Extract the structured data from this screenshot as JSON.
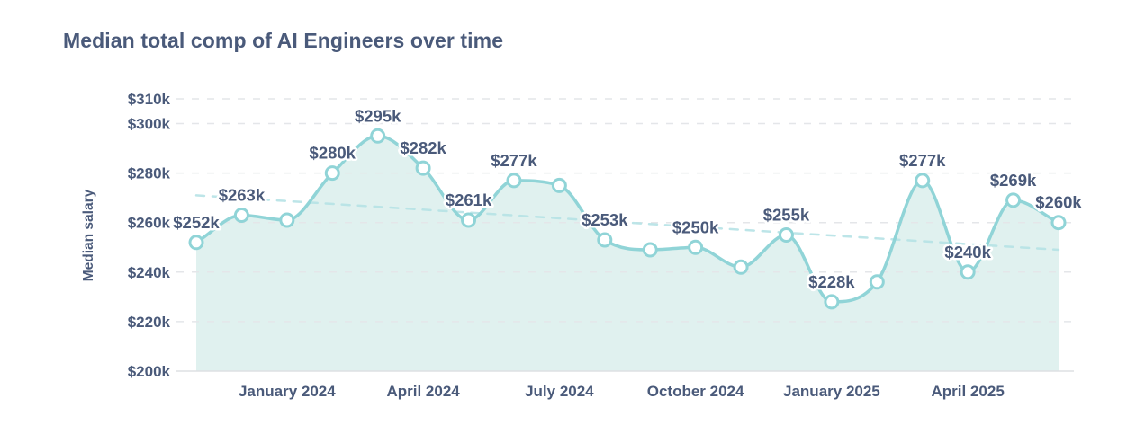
{
  "chart_data": {
    "type": "area",
    "title": "Median total comp of AI Engineers over time",
    "ylabel": "Median salary",
    "ylim": [
      200,
      310
    ],
    "grid": "dashed horizontal, gray",
    "legend": "none",
    "unit": "USD thousands",
    "values": [
      252,
      263,
      261,
      280,
      295,
      282,
      261,
      277,
      275,
      253,
      249,
      250,
      242,
      255,
      228,
      236,
      277,
      240,
      269,
      260
    ],
    "point_labels": [
      "$252k",
      "$263k",
      null,
      "$280k",
      "$295k",
      "$282k",
      "$261k",
      "$277k",
      null,
      "$253k",
      null,
      "$250k",
      null,
      "$255k",
      "$228k",
      null,
      "$277k",
      "$240k",
      "$269k",
      "$260k"
    ],
    "x_ticks": [
      {
        "index": 2,
        "label": "January 2024"
      },
      {
        "index": 5,
        "label": "April 2024"
      },
      {
        "index": 8,
        "label": "July 2024"
      },
      {
        "index": 11,
        "label": "October 2024"
      },
      {
        "index": 14,
        "label": "January 2025"
      },
      {
        "index": 17,
        "label": "April 2025"
      }
    ],
    "y_ticks": [
      {
        "value": 310,
        "label": "$310k"
      },
      {
        "value": 300,
        "label": "$300k"
      },
      {
        "value": 280,
        "label": "$280k"
      },
      {
        "value": 260,
        "label": "$260k"
      },
      {
        "value": 240,
        "label": "$240k"
      },
      {
        "value": 220,
        "label": "$220k"
      },
      {
        "value": 200,
        "label": "$200k"
      }
    ],
    "trend_line": {
      "style": "dashed",
      "start_value": 271,
      "end_value": 249
    },
    "colors": {
      "text": "#4a5a7a",
      "line": "#90d4d7",
      "area_fill": "#e0f1ef",
      "marker_fill": "#ffffff",
      "trend": "#b6e3e6",
      "gridline": "#e4e6e9",
      "baseline": "#dee0e4"
    }
  }
}
